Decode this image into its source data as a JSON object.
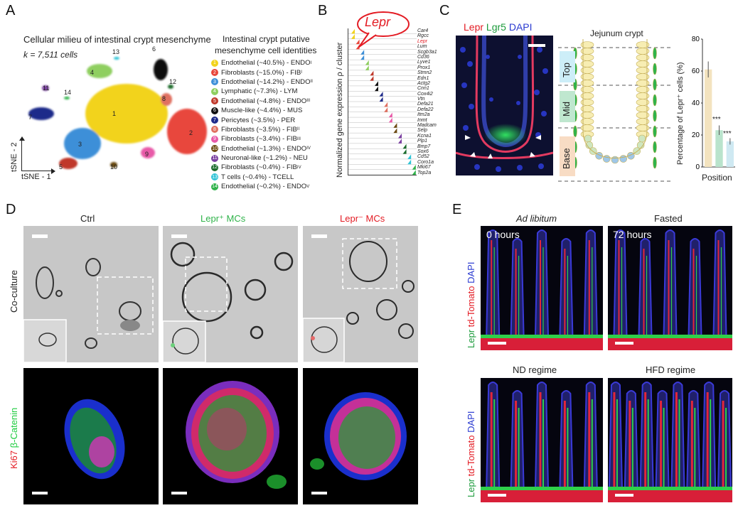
{
  "panels": {
    "A": {
      "label": "A",
      "title": "Cellular milieu of intestinal crypt mesenchyme",
      "k_text": "k = 7,511 cells",
      "axis_x": "tSNE - 1",
      "axis_y": "tSNE - 2",
      "legend_title_line1": "Intestinal crypt putative",
      "legend_title_line2": "mesenchyme cell identities",
      "clusters": [
        {
          "n": "1",
          "text": "Endothelial (~40.5%) - ENDO",
          "sup": "I",
          "color": "#f2d31d"
        },
        {
          "n": "2",
          "text": "Fibroblasts (~15.0%) - FIB",
          "sup": "I",
          "color": "#e8473c"
        },
        {
          "n": "3",
          "text": "Endothelial (~14.2%) - ENDO",
          "sup": "II",
          "color": "#3d8fd8"
        },
        {
          "n": "4",
          "text": "Lymphatic (~7.3%) - LYM",
          "sup": "",
          "color": "#8fcf60"
        },
        {
          "n": "5",
          "text": "Endothelial (~4.8%) - ENDO",
          "sup": "III",
          "color": "#c0392b"
        },
        {
          "n": "6",
          "text": "Muscle-like (~4.4%) - MUS",
          "sup": "",
          "color": "#111111"
        },
        {
          "n": "7",
          "text": "Pericytes (~3.5%) - PER",
          "sup": "",
          "color": "#1e2a8a"
        },
        {
          "n": "8",
          "text": "Fibroblasts (~3.5%) - FIB",
          "sup": "II",
          "color": "#e07060"
        },
        {
          "n": "9",
          "text": "Fibroblasts (~3.4%) - FIB",
          "sup": "III",
          "color": "#e85aa8"
        },
        {
          "n": "10",
          "text": "Endothelial (~1.3%) - ENDO",
          "sup": "IV",
          "color": "#6b4a10"
        },
        {
          "n": "11",
          "text": "Neuronal-like (~1.2%) - NEU",
          "sup": "",
          "color": "#7a3fa0"
        },
        {
          "n": "12",
          "text": "Fibroblasts (~0.4%) - FIB",
          "sup": "IV",
          "color": "#1a6b2a"
        },
        {
          "n": "13",
          "text": "T cells (~0.4%) - TCELL",
          "sup": "",
          "color": "#2ec4d6"
        },
        {
          "n": "14",
          "text": "Endothelial (~0.2%) - ENDO",
          "sup": "V",
          "color": "#2fb34a"
        }
      ],
      "map_labels": [
        "1",
        "2",
        "3",
        "4",
        "5",
        "6",
        "7",
        "8",
        "9",
        "10",
        "11",
        "12",
        "13",
        "14"
      ]
    },
    "B": {
      "label": "B",
      "callout": "Lepr",
      "ylabel": "Normalized gene expression ρ / cluster",
      "genes": [
        "Car4",
        "Rgcc",
        "Lepr",
        "Lum",
        "Scgb3a1",
        "Cd36",
        "Lyve1",
        "Prox1",
        "Stmn2",
        "Edn1",
        "Actg2",
        "Cnn1",
        "Cox4i2",
        "Vtn",
        "Defa21",
        "Defa22",
        "Itm2a",
        "Inmt",
        "Madcam",
        "Selp",
        "Kcna1",
        "Plp1",
        "Bmp7",
        "Sox6",
        "Cd52",
        "Coro1a",
        "Mki67",
        "Top2a"
      ]
    },
    "C": {
      "label": "C",
      "stain_lepr": "Lepr",
      "stain_lgr5": "Lgr5",
      "stain_dapi": "DAPI",
      "diagram_title": "Jejunum crypt",
      "zone_top": "Top",
      "zone_mid": "Mid",
      "zone_base": "Base",
      "bar_ylabel": "Percentage of Lepr⁺ cells (%)",
      "bar_xlabel": "Position",
      "sig1": "***",
      "sig2": "***"
    },
    "D": {
      "label": "D",
      "col_ctrl": "Ctrl",
      "col_lepr_pos": "Lepr⁺ MCs",
      "col_lepr_neg": "Lepr⁻ MCs",
      "row_coculture": "Co-culture",
      "row_ki67": "Ki67",
      "row_bcat": "β-Catenin"
    },
    "E": {
      "label": "E",
      "top_left_title": "Ad libitum",
      "top_right_title": "Fasted",
      "time_left": "0 hours",
      "time_right": "72 hours",
      "bottom_left_title": "ND regime",
      "bottom_right_title": "HFD regime",
      "stain_lepr": "Lepr",
      "stain_td": "td-Tomato",
      "stain_dapi": "DAPI"
    }
  },
  "chart_data": {
    "type": "bar",
    "categories": [
      "Top",
      "Mid",
      "Base"
    ],
    "values": [
      61,
      23,
      16
    ],
    "errors": [
      5,
      3,
      2
    ],
    "xlabel": "Position",
    "ylabel": "Percentage of Lepr⁺ cells (%)",
    "ylim": [
      0,
      80
    ],
    "yticks": [
      0,
      20,
      40,
      60,
      80
    ],
    "colors": [
      "#f3e3bf",
      "#b9e3cc",
      "#cfe9f2"
    ]
  }
}
